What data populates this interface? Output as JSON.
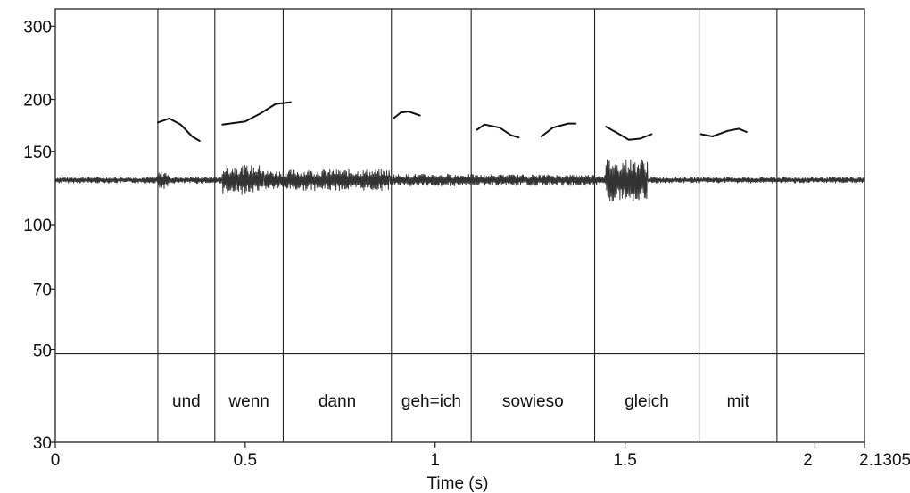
{
  "chart_data": {
    "type": "line",
    "title": "",
    "xlabel": "Time (s)",
    "ylabel": "",
    "xlim": [
      0,
      2.1305
    ],
    "ylim": [
      30,
      330
    ],
    "y_scale": "log",
    "x_ticks": [
      {
        "value": 0,
        "label": "0"
      },
      {
        "value": 0.5,
        "label": "0.5"
      },
      {
        "value": 1,
        "label": "1"
      },
      {
        "value": 1.5,
        "label": "1.5"
      },
      {
        "value": 2,
        "label": "2"
      },
      {
        "value": 2.1305,
        "label": "2.1305"
      }
    ],
    "y_ticks": [
      {
        "value": 300,
        "label": "300"
      },
      {
        "value": 200,
        "label": "200"
      },
      {
        "value": 150,
        "label": "150"
      },
      {
        "value": 100,
        "label": "100"
      },
      {
        "value": 70,
        "label": "70"
      },
      {
        "value": 50,
        "label": "50"
      },
      {
        "value": 30,
        "label": "30"
      }
    ],
    "boundaries": [
      0.27,
      0.42,
      0.6,
      0.885,
      1.095,
      1.42,
      1.695,
      1.9
    ],
    "tier_divider_value": 49,
    "grid": false,
    "words": [
      {
        "label": "und",
        "start": 0.27,
        "end": 0.42
      },
      {
        "label": "wenn",
        "start": 0.42,
        "end": 0.6
      },
      {
        "label": "dann",
        "start": 0.6,
        "end": 0.885
      },
      {
        "label": "geh=ich",
        "start": 0.885,
        "end": 1.095
      },
      {
        "label": "sowieso",
        "start": 1.095,
        "end": 1.42
      },
      {
        "label": "gleich",
        "start": 1.42,
        "end": 1.695
      },
      {
        "label": "mit",
        "start": 1.695,
        "end": 1.9
      }
    ],
    "series": [
      {
        "x": [
          0.27,
          0.3,
          0.33,
          0.36,
          0.38
        ],
        "y": [
          176,
          180,
          174,
          163,
          159
        ]
      },
      {
        "x": [
          0.44,
          0.5,
          0.54,
          0.58,
          0.62
        ],
        "y": [
          174,
          177,
          185,
          195,
          197
        ]
      },
      {
        "x": [
          0.89,
          0.91,
          0.93,
          0.96
        ],
        "y": [
          180,
          186,
          187,
          183
        ]
      },
      {
        "x": [
          1.11,
          1.13,
          1.17,
          1.2,
          1.22
        ],
        "y": [
          169,
          174,
          171,
          164,
          162
        ]
      },
      {
        "x": [
          1.28,
          1.31,
          1.35,
          1.37
        ],
        "y": [
          163,
          171,
          175,
          175
        ]
      },
      {
        "x": [
          1.45,
          1.48,
          1.51,
          1.54,
          1.57
        ],
        "y": [
          172,
          166,
          160,
          161,
          165
        ]
      },
      {
        "x": [
          1.7,
          1.73,
          1.77,
          1.8,
          1.82
        ],
        "y": [
          165,
          163,
          168,
          170,
          167
        ]
      }
    ],
    "waveform": {
      "baseline": 128,
      "segments": [
        {
          "start": 0.0,
          "end": 0.27,
          "amp": 0.018
        },
        {
          "start": 0.27,
          "end": 0.3,
          "amp": 0.05
        },
        {
          "start": 0.3,
          "end": 0.44,
          "amp": 0.02
        },
        {
          "start": 0.44,
          "end": 0.55,
          "amp": 0.085
        },
        {
          "start": 0.55,
          "end": 0.62,
          "amp": 0.055
        },
        {
          "start": 0.62,
          "end": 0.88,
          "amp": 0.06
        },
        {
          "start": 0.88,
          "end": 1.1,
          "amp": 0.035
        },
        {
          "start": 1.1,
          "end": 1.45,
          "amp": 0.032
        },
        {
          "start": 1.45,
          "end": 1.56,
          "amp": 0.12
        },
        {
          "start": 1.56,
          "end": 2.1305,
          "amp": 0.018
        }
      ]
    }
  }
}
